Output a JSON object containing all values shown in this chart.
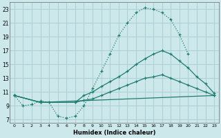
{
  "xlabel": "Humidex (Indice chaleur)",
  "xlim": [
    -0.5,
    23.5
  ],
  "ylim": [
    6.5,
    24.0
  ],
  "yticks": [
    7,
    9,
    11,
    13,
    15,
    17,
    19,
    21,
    23
  ],
  "xticks": [
    0,
    1,
    2,
    3,
    4,
    5,
    6,
    7,
    8,
    9,
    10,
    11,
    12,
    13,
    14,
    15,
    16,
    17,
    18,
    19,
    20,
    21,
    22,
    23
  ],
  "bg_color": "#cce8ea",
  "grid_color": "#aacfd4",
  "line_color": "#1e7b70",
  "line1_x": [
    0,
    1,
    2,
    3,
    4,
    5,
    6,
    7,
    8,
    9,
    10,
    11,
    12,
    13,
    14,
    15,
    16,
    17,
    18,
    19,
    20
  ],
  "line1_y": [
    10.5,
    9.0,
    9.2,
    9.7,
    9.5,
    7.5,
    7.2,
    7.5,
    9.0,
    11.5,
    14.0,
    16.5,
    19.2,
    21.0,
    22.5,
    23.2,
    23.0,
    22.5,
    21.5,
    19.3,
    16.5
  ],
  "line2_x": [
    0,
    3,
    7,
    8,
    9,
    10,
    11,
    12,
    13,
    14,
    15,
    16,
    17,
    18,
    19,
    20,
    21,
    22,
    23
  ],
  "line2_y": [
    10.5,
    9.5,
    9.5,
    10.5,
    11.0,
    11.8,
    12.5,
    13.2,
    14.0,
    15.0,
    15.8,
    16.5,
    17.0,
    16.5,
    15.5,
    14.5,
    13.2,
    12.2,
    10.8
  ],
  "line3_x": [
    0,
    3,
    7,
    8,
    9,
    10,
    11,
    12,
    13,
    14,
    15,
    16,
    17,
    18,
    19,
    20,
    21,
    22,
    23
  ],
  "line3_y": [
    10.5,
    9.5,
    9.5,
    9.8,
    10.0,
    10.5,
    11.0,
    11.5,
    12.0,
    12.5,
    13.0,
    13.2,
    13.5,
    13.0,
    12.5,
    12.0,
    11.5,
    11.0,
    10.5
  ],
  "line4_x": [
    0,
    3,
    23
  ],
  "line4_y": [
    10.5,
    9.5,
    10.5
  ]
}
